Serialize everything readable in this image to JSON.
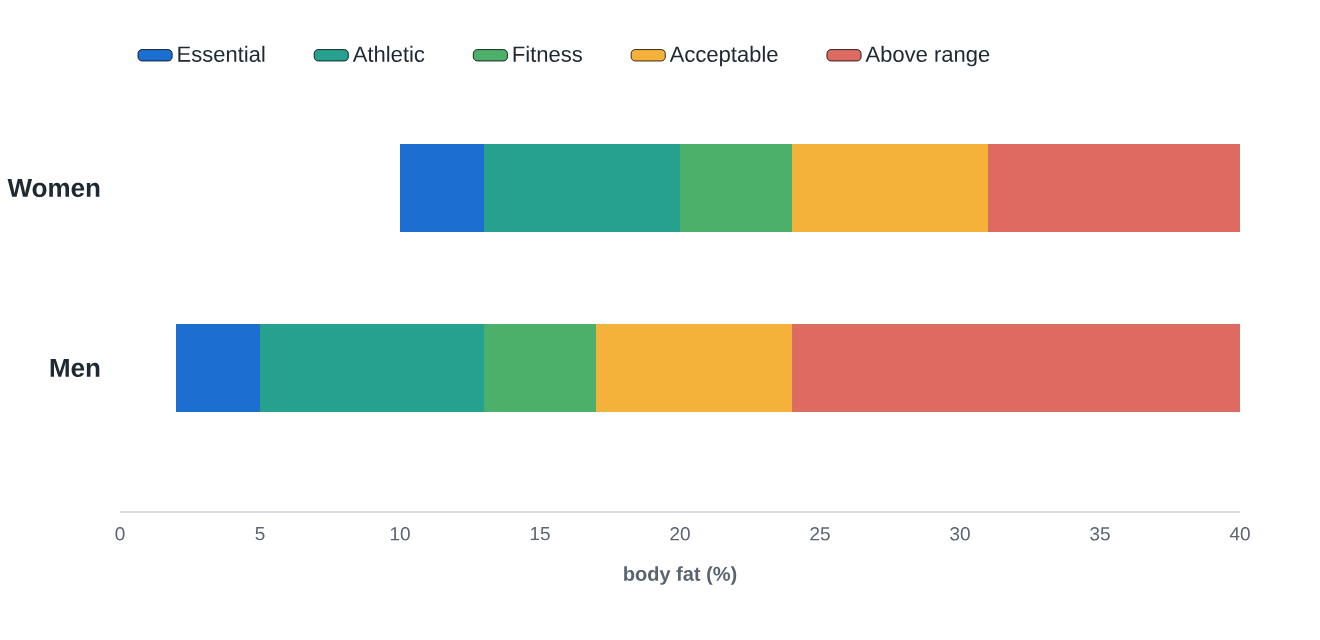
{
  "chart_data": {
    "type": "bar",
    "orientation": "horizontal",
    "categories": [
      "Women",
      "Men"
    ],
    "series": [
      {
        "name": "Essential",
        "color": "#1a6fd0",
        "base": [
          10,
          2
        ],
        "values": [
          3,
          3
        ]
      },
      {
        "name": "Athletic",
        "color": "#26a08f",
        "base": [
          13,
          5
        ],
        "values": [
          7,
          8
        ]
      },
      {
        "name": "Fitness",
        "color": "#4caf6a",
        "base": [
          20,
          13
        ],
        "values": [
          4,
          4
        ]
      },
      {
        "name": "Acceptable",
        "color": "#f5b23a",
        "base": [
          24,
          17
        ],
        "values": [
          7,
          7
        ]
      },
      {
        "name": "Above range",
        "color": "#de6b62",
        "base": [
          31,
          24
        ],
        "values": [
          9,
          16
        ]
      }
    ],
    "xlim": [
      0,
      40
    ],
    "xticks": [
      0,
      5,
      10,
      15,
      20,
      25,
      30,
      35,
      40
    ],
    "xlabel": "body fat (%)",
    "legend": "top left",
    "grid": false
  }
}
